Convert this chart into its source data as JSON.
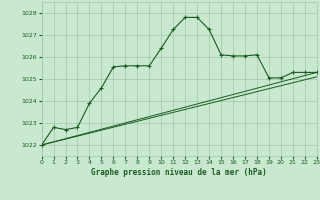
{
  "title": "Graphe pression niveau de la mer (hPa)",
  "background_color": "#c8e8d0",
  "grid_color": "#a0c8a8",
  "line_color": "#1a5c20",
  "xlim": [
    0,
    23
  ],
  "ylim": [
    1021.5,
    1028.5
  ],
  "yticks": [
    1022,
    1023,
    1024,
    1025,
    1026,
    1027,
    1028
  ],
  "xticks": [
    0,
    1,
    2,
    3,
    4,
    5,
    6,
    7,
    8,
    9,
    10,
    11,
    12,
    13,
    14,
    15,
    16,
    17,
    18,
    19,
    20,
    21,
    22,
    23
  ],
  "series_main": {
    "x": [
      0,
      1,
      2,
      3,
      4,
      5,
      6,
      7,
      8,
      9,
      10,
      11,
      12,
      13,
      14,
      15,
      16,
      17,
      18,
      19,
      20,
      21,
      22,
      23
    ],
    "y": [
      1022.0,
      1022.8,
      1022.7,
      1022.8,
      1023.9,
      1024.6,
      1025.55,
      1025.6,
      1025.6,
      1025.6,
      1026.4,
      1027.25,
      1027.8,
      1027.8,
      1027.25,
      1026.1,
      1026.05,
      1026.05,
      1026.1,
      1025.05,
      1025.05,
      1025.3,
      1025.3,
      1025.3
    ]
  },
  "series_line1": {
    "x": [
      0,
      23
    ],
    "y": [
      1022.0,
      1025.3
    ]
  },
  "series_line2": {
    "x": [
      0,
      23
    ],
    "y": [
      1022.0,
      1025.3
    ]
  }
}
